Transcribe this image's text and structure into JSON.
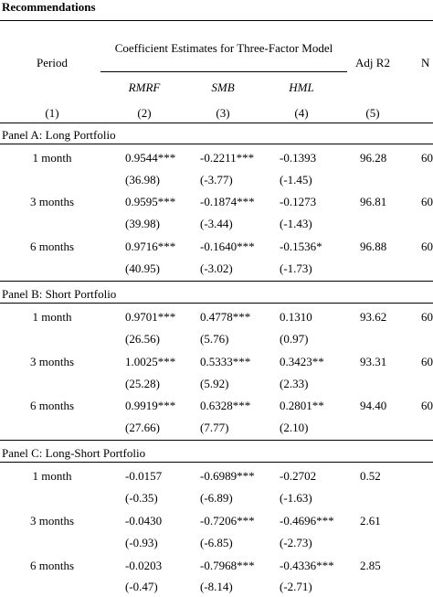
{
  "title": "Recommendations",
  "header": {
    "period": "Period",
    "coef_group": "Coefficient Estimates for Three-Factor Model",
    "adj_r2": "Adj R2",
    "n": "N",
    "rmrf": "RMRF",
    "smb": "SMB",
    "hml": "HML",
    "col_numbers": [
      "(1)",
      "(2)",
      "(3)",
      "(4)",
      "(5)"
    ]
  },
  "panels": [
    {
      "label": "Panel A: Long Portfolio",
      "rows": [
        {
          "period": "1 month",
          "rmrf": "0.9544***",
          "smb": "-0.2211***",
          "hml": "-0.1393",
          "adj_r2": "96.28",
          "n": "60",
          "rmrf_t": "(36.98)",
          "smb_t": "(-3.77)",
          "hml_t": "(-1.45)"
        },
        {
          "period": "3 months",
          "rmrf": "0.9595***",
          "smb": "-0.1874***",
          "hml": "-0.1273",
          "adj_r2": "96.81",
          "n": "60",
          "rmrf_t": "(39.98)",
          "smb_t": "(-3.44)",
          "hml_t": "(-1.43)"
        },
        {
          "period": "6 months",
          "rmrf": "0.9716***",
          "smb": "-0.1640***",
          "hml": "-0.1536*",
          "adj_r2": "96.88",
          "n": "60",
          "rmrf_t": "(40.95)",
          "smb_t": "(-3.02)",
          "hml_t": "(-1.73)"
        }
      ]
    },
    {
      "label": "Panel B: Short Portfolio",
      "rows": [
        {
          "period": "1 month",
          "rmrf": "0.9701***",
          "smb": "0.4778***",
          "hml": "0.1310",
          "adj_r2": "93.62",
          "n": "60",
          "rmrf_t": "(26.56)",
          "smb_t": "(5.76)",
          "hml_t": "(0.97)"
        },
        {
          "period": "3 months",
          "rmrf": "1.0025***",
          "smb": "0.5333***",
          "hml": "0.3423**",
          "adj_r2": "93.31",
          "n": "60",
          "rmrf_t": "(25.28)",
          "smb_t": "(5.92)",
          "hml_t": "(2.33)"
        },
        {
          "period": "6 months",
          "rmrf": "0.9919***",
          "smb": "0.6328***",
          "hml": "0.2801**",
          "adj_r2": "94.40",
          "n": "60",
          "rmrf_t": "(27.66)",
          "smb_t": "(7.77)",
          "hml_t": "(2.10)"
        }
      ]
    },
    {
      "label": "Panel C: Long-Short Portfolio",
      "rows": [
        {
          "period": "1 month",
          "rmrf": "-0.0157",
          "smb": "-0.6989***",
          "hml": "-0.2702",
          "adj_r2": "0.52",
          "n": "",
          "rmrf_t": "(-0.35)",
          "smb_t": "(-6.89)",
          "hml_t": "(-1.63)"
        },
        {
          "period": "3 months",
          "rmrf": "-0.0430",
          "smb": "-0.7206***",
          "hml": "-0.4696***",
          "adj_r2": "2.61",
          "n": "",
          "rmrf_t": "(-0.93)",
          "smb_t": "(-6.85)",
          "hml_t": "(-2.73)"
        },
        {
          "period": "6 months",
          "rmrf": "-0.0203",
          "smb": "-0.7968***",
          "hml": "-0.4336***",
          "adj_r2": "2.85",
          "n": "",
          "rmrf_t": "(-0.47)",
          "smb_t": "(-8.14)",
          "hml_t": "(-2.71)"
        }
      ]
    }
  ]
}
